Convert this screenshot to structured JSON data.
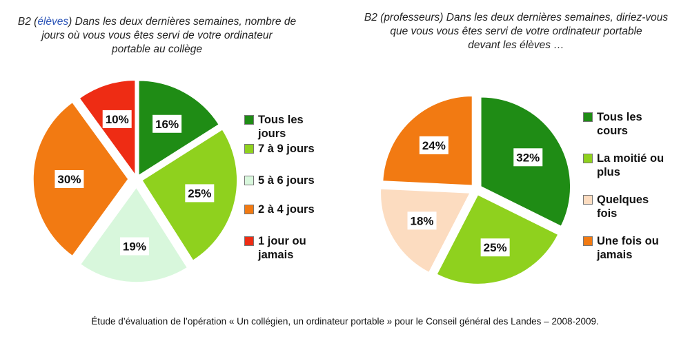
{
  "caption": "Étude d’évaluation de l’opération « Un collégien, un ordinateur portable » pour le Conseil général des Landes – 2008-2009.",
  "chart_data": [
    {
      "type": "pie",
      "title": {
        "prefix": "B2 (",
        "highlight": "élèves",
        "rest_first_line": ") Dans les deux dernières semaines, nombre de",
        "line2": "jours où vous vous êtes servi de votre ordinateur",
        "line3": "portable au collège"
      },
      "slices": [
        {
          "label": "Tous les\njours",
          "value": 16,
          "display": "16%",
          "color": "#1f8c15"
        },
        {
          "label": "7 à 9 jours",
          "value": 25,
          "display": "25%",
          "color": "#8fd11e"
        },
        {
          "label": "5 à 6 jours",
          "value": 19,
          "display": "19%",
          "color": "#d8f7dc"
        },
        {
          "label": "2 à 4 jours",
          "value": 30,
          "display": "30%",
          "color": "#f27a12"
        },
        {
          "label": "1 jour ou\njamais",
          "value": 10,
          "display": "10%",
          "color": "#ee2c14"
        }
      ],
      "legend_position": "right"
    },
    {
      "type": "pie",
      "title": {
        "prefix": "B2 (",
        "highlight": "professeurs",
        "rest_first_line": ") Dans les deux dernières semaines, diriez-vous",
        "line2": "que vous vous êtes servi de votre ordinateur portable",
        "line3": "devant les élèves …"
      },
      "slices": [
        {
          "label": "Tous les\ncours",
          "value": 32,
          "display": "32%",
          "color": "#1f8c15"
        },
        {
          "label": "La moitié ou\nplus",
          "value": 25,
          "display": "25%",
          "color": "#8fd11e"
        },
        {
          "label": "Quelques\nfois",
          "value": 18,
          "display": "18%",
          "color": "#fcdcc0"
        },
        {
          "label": "Une fois ou\njamais",
          "value": 24,
          "display": "24%",
          "color": "#f27a12"
        }
      ],
      "legend_position": "right"
    }
  ]
}
